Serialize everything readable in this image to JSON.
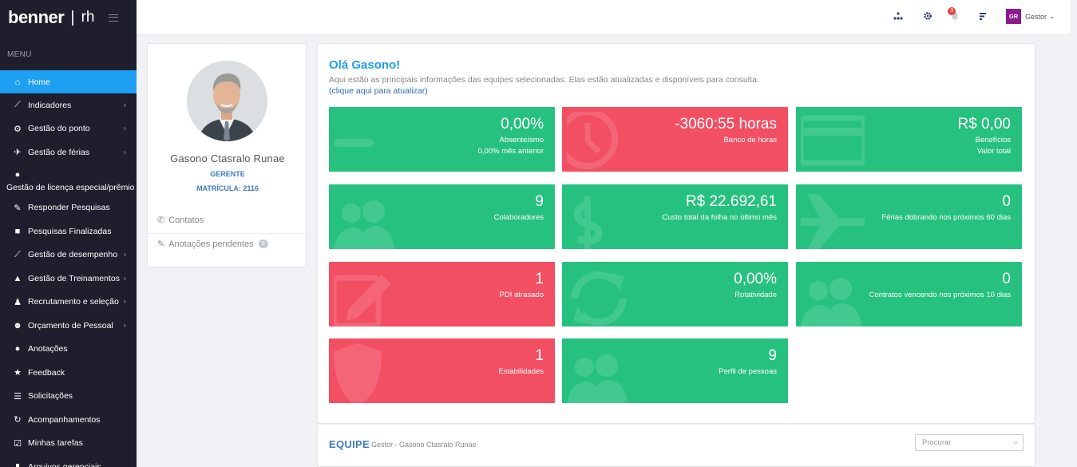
{
  "brand": {
    "logo": "benner",
    "sep": "|",
    "suffix": "rh"
  },
  "menu_title": "MENU",
  "nav": [
    {
      "label": "Home",
      "icon": "home-icon",
      "active": true,
      "chevron": false
    },
    {
      "label": "Indicadores",
      "icon": "chart-line-icon",
      "chevron": true
    },
    {
      "label": "Gestão do ponto",
      "icon": "gears-icon",
      "chevron": true
    },
    {
      "label": "Gestão de férias",
      "icon": "plane-icon",
      "chevron": true
    },
    {
      "label": "Gestão de licença especial/prêmio",
      "icon": "money-bag-icon",
      "chevron": false
    },
    {
      "label": "Responder Pesquisas",
      "icon": "edit-icon",
      "chevron": false
    },
    {
      "label": "Pesquisas Finalizadas",
      "icon": "square-check-icon",
      "chevron": false
    },
    {
      "label": "Gestão de desempenho",
      "icon": "chart-line-icon",
      "chevron": true
    },
    {
      "label": "Gestão de Treinamentos",
      "icon": "graduation-cap-icon",
      "chevron": true
    },
    {
      "label": "Recrutamento e seleção",
      "icon": "person-icon",
      "chevron": true
    },
    {
      "label": "Orçamento de Pessoal",
      "icon": "users-icon",
      "chevron": true
    },
    {
      "label": "Anotações",
      "icon": "comment-icon",
      "chevron": false
    },
    {
      "label": "Feedback",
      "icon": "star-half-icon",
      "chevron": false
    },
    {
      "label": "Solicitações",
      "icon": "list-icon",
      "chevron": false
    },
    {
      "label": "Acompanhamentos",
      "icon": "sync-icon",
      "chevron": false
    },
    {
      "label": "Minhas tarefas",
      "icon": "check-square-icon",
      "chevron": false
    },
    {
      "label": "Arquivos gerenciais",
      "icon": "bar-chart-icon",
      "chevron": false
    }
  ],
  "topbar": {
    "notification_count": "3",
    "user_initials": "GR",
    "user_name": "Gestor"
  },
  "profile": {
    "name": "Gasono Ctasralo Runae",
    "role": "GERENTE",
    "matricula": "MATRÍCULA: 2116",
    "contacts_label": "Contatos",
    "notes_label": "Anotações pendentes",
    "notes_count": "0"
  },
  "main": {
    "greeting": "Olá Gasono!",
    "description": "Aqui estão as principais informações das equipes selecionadas. Elas estão atualizadas e disponíveis para consulta.",
    "update_link": "(clique aqui para atualizar)"
  },
  "cards": [
    {
      "value": "0,00%",
      "label": "Absenteísmo",
      "sub": "0,00% mês anterior",
      "color": "green",
      "icon": "minus-icon"
    },
    {
      "value": "-3060:55 horas",
      "label": "Banco de horas",
      "sub": "",
      "color": "red",
      "icon": "clock-icon"
    },
    {
      "value": "R$ 0,00",
      "label": "Benefícios",
      "sub": "Valor total",
      "color": "green",
      "icon": "credit-card-icon"
    },
    {
      "value": "9",
      "label": "Colaboradores",
      "sub": "",
      "color": "green",
      "icon": "users-icon"
    },
    {
      "value": "R$ 22.692,61",
      "label": "Custo total da folha no último mês",
      "sub": "",
      "color": "green",
      "icon": "dollar-icon"
    },
    {
      "value": "0",
      "label": "Férias dobrando nos próximos 60 dias",
      "sub": "",
      "color": "green",
      "icon": "plane-icon"
    },
    {
      "value": "1",
      "label": "PDI atrasado",
      "sub": "",
      "color": "red",
      "icon": "pencil-square-icon"
    },
    {
      "value": "0,00%",
      "label": "Rotatividade",
      "sub": "",
      "color": "green",
      "icon": "sync-icon"
    },
    {
      "value": "0",
      "label": "Contratos vencendo nos próximos 10 dias",
      "sub": "",
      "color": "green",
      "icon": "users-icon"
    },
    {
      "value": "1",
      "label": "Estabilidades",
      "sub": "",
      "color": "red",
      "icon": "shield-icon"
    },
    {
      "value": "9",
      "label": "Perfil de pessoas",
      "sub": "",
      "color": "green",
      "icon": "users-icon"
    }
  ],
  "equipe": {
    "title": "EQUIPE",
    "subtitle": "Gestor - Gasono Ctasralo Runae",
    "search_placeholder": "Procurar"
  },
  "colors": {
    "sidebar": "#1e1e2d",
    "accent": "#1e9ff2",
    "green": "#27c17f",
    "red": "#f24f63"
  }
}
